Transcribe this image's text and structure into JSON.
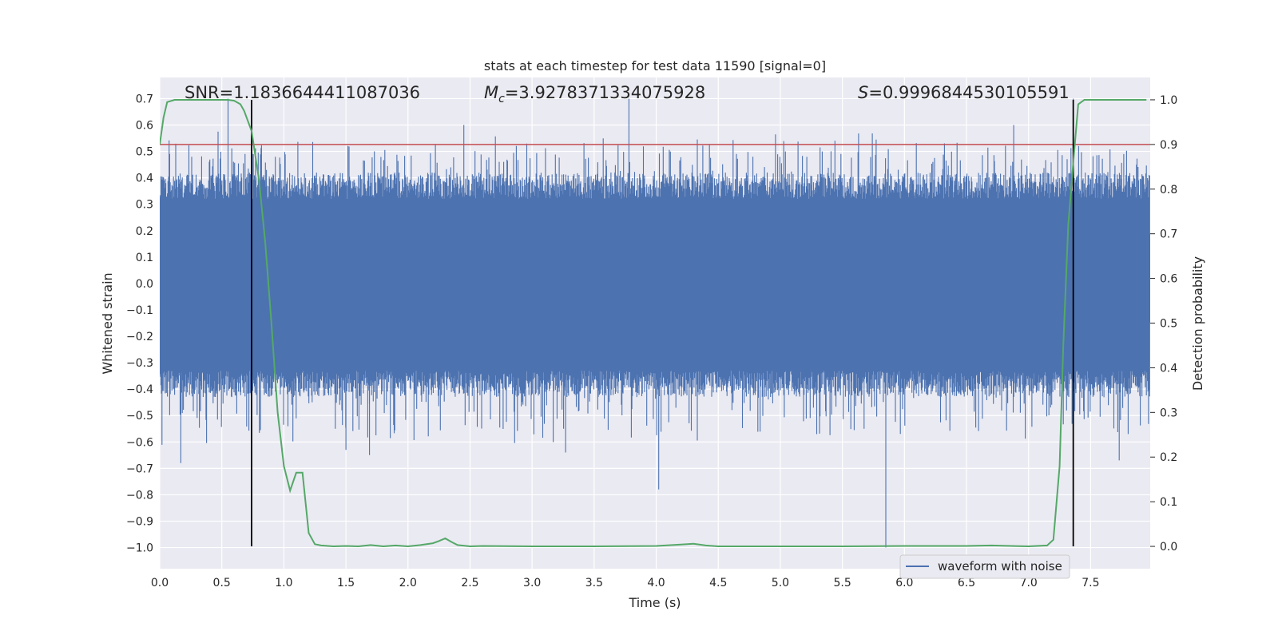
{
  "chart_data": {
    "type": "line",
    "title": "stats at each timestep for test data 11590 [signal=0]",
    "xlabel": "Time (s)",
    "ylabel": "Whitened strain",
    "ylabel_right": "Detection probability",
    "xlim": [
      0.0,
      7.98
    ],
    "ylim": [
      -1.08,
      0.78
    ],
    "ylim_right": [
      -0.05,
      1.05
    ],
    "grid": true,
    "x_ticks": [
      "0.0",
      "0.5",
      "1.0",
      "1.5",
      "2.0",
      "2.5",
      "3.0",
      "3.5",
      "4.0",
      "4.5",
      "5.0",
      "5.5",
      "6.0",
      "6.5",
      "7.0",
      "7.5"
    ],
    "y_ticks": [
      "0.7",
      "0.6",
      "0.5",
      "0.4",
      "0.3",
      "0.2",
      "0.1",
      "0.0",
      "−0.1",
      "−0.2",
      "−0.3",
      "−0.4",
      "−0.5",
      "−0.6",
      "−0.7",
      "−0.8",
      "−0.9",
      "−1.0"
    ],
    "y_right_ticks": [
      "1.0",
      "0.9",
      "0.8",
      "0.7",
      "0.6",
      "0.5",
      "0.4",
      "0.3",
      "0.2",
      "0.1",
      "0.0"
    ],
    "annotations": {
      "snr": "SNR=1.1836644411087036",
      "mc_symbol": "M",
      "mc_sub": "c",
      "mc_value": "=3.9278371334075928",
      "s_symbol": "S",
      "s_value": "=0.9996844530105591"
    },
    "legend": {
      "label": "waveform with noise",
      "position": "lower right"
    },
    "threshold_right": 0.9,
    "vlines_x": [
      0.74,
      7.36
    ],
    "series": [
      {
        "name": "waveform with noise",
        "kind": "noise",
        "color": "#4c72b0",
        "core_range": [
          -0.15,
          0.19
        ],
        "envelope_range": [
          -0.38,
          0.37
        ],
        "spikes": [
          {
            "x": 0.17,
            "y": -0.68
          },
          {
            "x": 0.55,
            "y": 0.7
          },
          {
            "x": 1.5,
            "y": -0.63
          },
          {
            "x": 1.69,
            "y": -0.65
          },
          {
            "x": 2.45,
            "y": 0.6
          },
          {
            "x": 3.27,
            "y": -0.64
          },
          {
            "x": 3.78,
            "y": 0.7
          },
          {
            "x": 4.02,
            "y": -0.78
          },
          {
            "x": 5.85,
            "y": -1.0
          },
          {
            "x": 6.88,
            "y": 0.6
          },
          {
            "x": 7.36,
            "y": 0.7
          },
          {
            "x": 7.73,
            "y": -0.67
          }
        ]
      },
      {
        "name": "",
        "kind": "probability",
        "axis": "right",
        "color": "#55a868",
        "x": [
          0.0,
          0.03,
          0.06,
          0.12,
          0.2,
          0.3,
          0.4,
          0.5,
          0.55,
          0.6,
          0.65,
          0.68,
          0.74,
          0.8,
          0.85,
          0.9,
          0.95,
          1.0,
          1.05,
          1.1,
          1.15,
          1.2,
          1.25,
          1.3,
          1.4,
          1.5,
          1.6,
          1.7,
          1.8,
          1.9,
          2.0,
          2.1,
          2.2,
          2.25,
          2.3,
          2.35,
          2.4,
          2.5,
          2.6,
          3.0,
          3.5,
          4.0,
          4.2,
          4.3,
          4.4,
          4.5,
          5.0,
          5.5,
          6.0,
          6.5,
          6.7,
          7.0,
          7.15,
          7.2,
          7.25,
          7.28,
          7.32,
          7.36,
          7.4,
          7.45,
          7.5,
          7.6,
          7.8,
          7.95
        ],
        "y": [
          0.9,
          0.96,
          0.995,
          1.0,
          1.0,
          1.0,
          1.0,
          1.0,
          1.0,
          0.998,
          0.99,
          0.975,
          0.93,
          0.82,
          0.68,
          0.5,
          0.3,
          0.18,
          0.125,
          0.165,
          0.165,
          0.03,
          0.005,
          0.002,
          0.0,
          0.001,
          0.0,
          0.003,
          0.0,
          0.002,
          0.0,
          0.003,
          0.007,
          0.012,
          0.018,
          0.01,
          0.003,
          0.0,
          0.001,
          0.0,
          0.0,
          0.001,
          0.004,
          0.006,
          0.002,
          0.0,
          0.0,
          0.0,
          0.001,
          0.001,
          0.002,
          0.0,
          0.002,
          0.015,
          0.18,
          0.45,
          0.72,
          0.86,
          0.99,
          1.0,
          1.0,
          1.0,
          1.0,
          1.0
        ]
      }
    ],
    "colors": {
      "background": "#eaeaf2",
      "grid": "#ffffff",
      "threshold": "#c44e52",
      "vline": "#000000"
    }
  }
}
